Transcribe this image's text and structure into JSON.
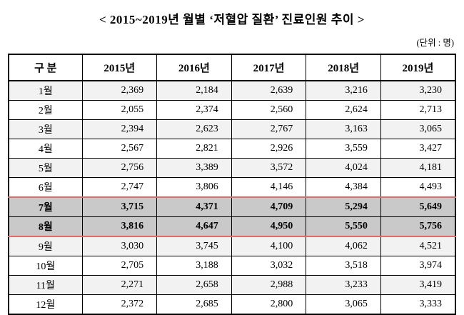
{
  "title": "< 2015~2019년 월별  ‘저혈압 질환’ 진료인원 추이 >",
  "unit_label": "(단위 : 명)",
  "colors": {
    "accent_red": "#e06a6a",
    "stripe_row_bg": "#f2f2f2",
    "highlight_row_bg": "#c9c9c9",
    "border_black": "#000000"
  },
  "chart_data": {
    "type": "table",
    "title": "< 2015~2019년 월별 ‘저혈압 질환’ 진료인원 추이 >",
    "unit": "명",
    "columns": [
      "구 분",
      "2015년",
      "2016년",
      "2017년",
      "2018년",
      "2019년"
    ],
    "rows": [
      {
        "month": "1월",
        "values": [
          "2,369",
          "2,184",
          "2,639",
          "3,216",
          "3,230"
        ],
        "highlighted": false
      },
      {
        "month": "2월",
        "values": [
          "2,055",
          "2,374",
          "2,560",
          "2,624",
          "2,713"
        ],
        "highlighted": false
      },
      {
        "month": "3월",
        "values": [
          "2,394",
          "2,623",
          "2,767",
          "3,163",
          "3,065"
        ],
        "highlighted": false
      },
      {
        "month": "4월",
        "values": [
          "2,567",
          "2,821",
          "2,926",
          "3,559",
          "3,427"
        ],
        "highlighted": false
      },
      {
        "month": "5월",
        "values": [
          "2,756",
          "3,389",
          "3,572",
          "4,024",
          "4,181"
        ],
        "highlighted": false
      },
      {
        "month": "6월",
        "values": [
          "2,747",
          "3,806",
          "4,146",
          "4,384",
          "4,493"
        ],
        "highlighted": false
      },
      {
        "month": "7월",
        "values": [
          "3,715",
          "4,371",
          "4,709",
          "5,294",
          "5,649"
        ],
        "highlighted": true
      },
      {
        "month": "8월",
        "values": [
          "3,816",
          "4,647",
          "4,950",
          "5,550",
          "5,756"
        ],
        "highlighted": true
      },
      {
        "month": "9월",
        "values": [
          "3,030",
          "3,745",
          "4,100",
          "4,062",
          "4,521"
        ],
        "highlighted": false
      },
      {
        "month": "10월",
        "values": [
          "2,705",
          "3,188",
          "3,032",
          "3,518",
          "3,974"
        ],
        "highlighted": false
      },
      {
        "month": "11월",
        "values": [
          "2,271",
          "2,658",
          "2,988",
          "3,233",
          "3,419"
        ],
        "highlighted": false
      },
      {
        "month": "12월",
        "values": [
          "2,372",
          "2,685",
          "2,800",
          "3,065",
          "3,333"
        ],
        "highlighted": false
      }
    ],
    "highlighted_months": [
      "7월",
      "8월"
    ]
  }
}
